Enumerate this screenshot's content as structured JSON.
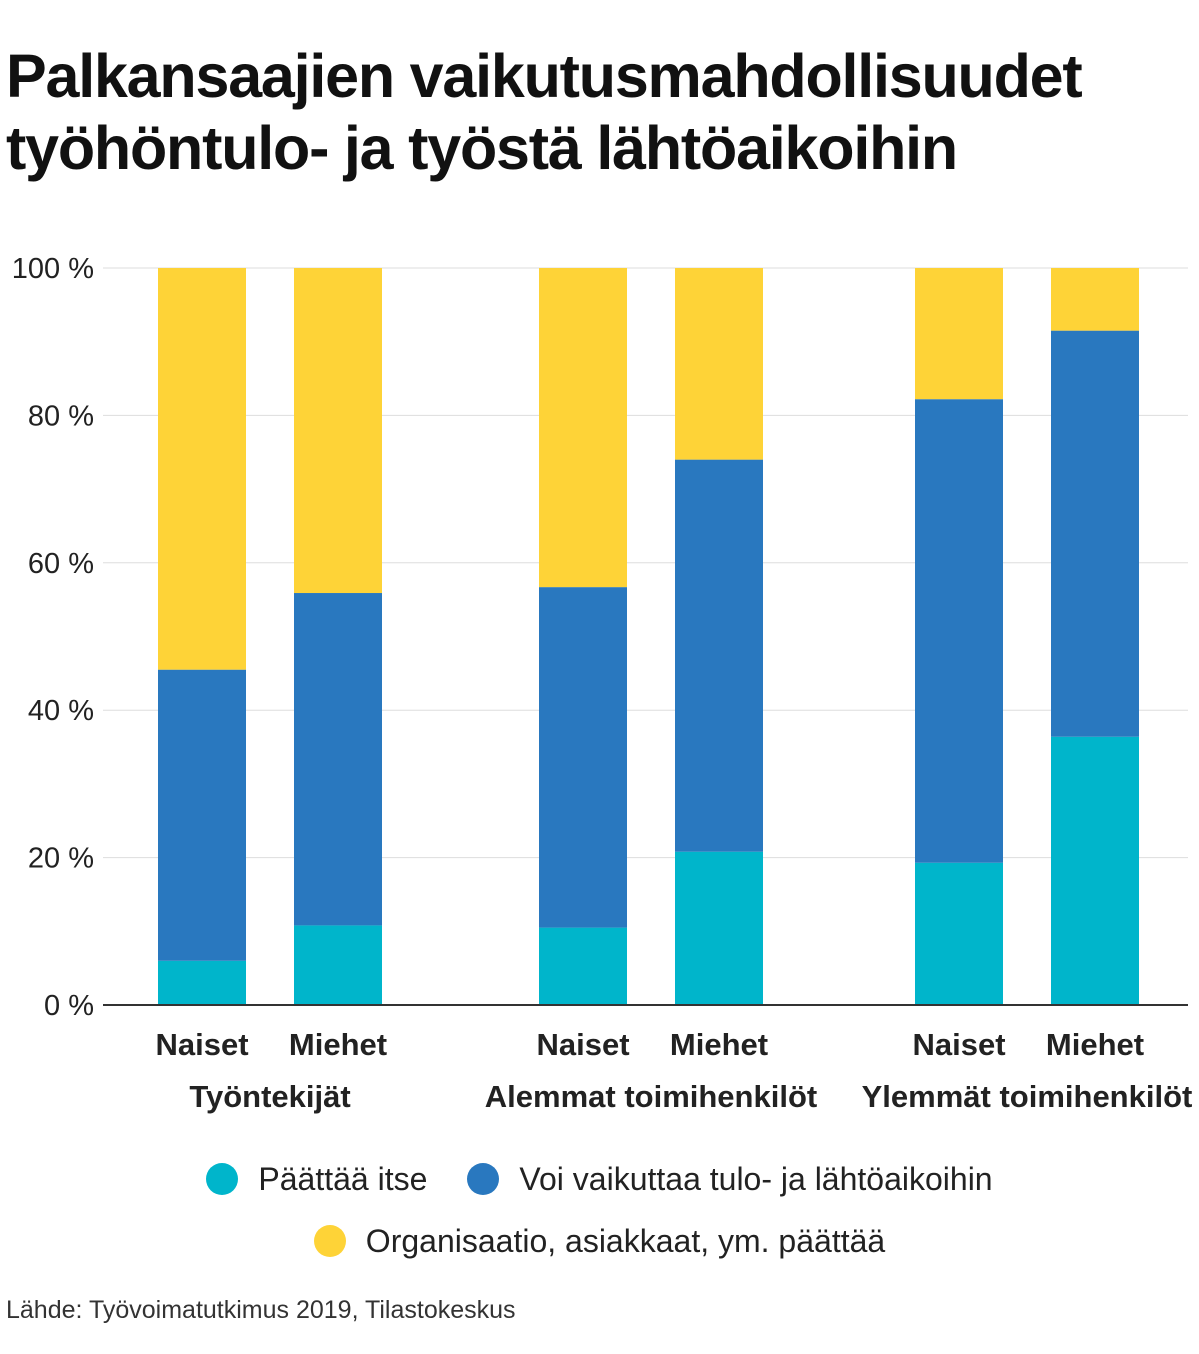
{
  "title_lines": [
    "Palkansaajien vaikutusmahdollisuudet",
    "työhöntulo- ja työstä lähtöaikoihin"
  ],
  "source": "Lähde: Työvoimatutkimus 2019, Tilastokeskus",
  "colors": {
    "paattaa_itse": "#00b5cb",
    "voi_vaikuttaa": "#2978bf",
    "organisaatio": "#fed337",
    "grid": "#dddddd",
    "axis": "#333333"
  },
  "chart_data": {
    "type": "bar",
    "stacked": true,
    "title": "Palkansaajien vaikutusmahdollisuudet työhöntulo- ja työstä lähtöaikoihin",
    "ylim": [
      0,
      100
    ],
    "yticks": [
      0,
      20,
      40,
      60,
      80,
      100
    ],
    "ytick_labels": [
      "0 %",
      "20 %",
      "40 %",
      "60 %",
      "80 %",
      "100 %"
    ],
    "grid": true,
    "legend_position": "bottom",
    "groups": [
      {
        "label": "Työntekijät",
        "bars": [
          {
            "label": "Naiset",
            "values": [
              6,
              39.5,
              54.5
            ]
          },
          {
            "label": "Miehet",
            "values": [
              10.8,
              45.1,
              44.1
            ]
          }
        ]
      },
      {
        "label": "Alemmat toimihenkilöt",
        "bars": [
          {
            "label": "Naiset",
            "values": [
              10.5,
              46.2,
              43.3
            ]
          },
          {
            "label": "Miehet",
            "values": [
              20.8,
              53.2,
              26
            ]
          }
        ]
      },
      {
        "label": "Ylemmät toimihenkilöt",
        "bars": [
          {
            "label": "Naiset",
            "values": [
              19.3,
              62.9,
              17.8
            ]
          },
          {
            "label": "Miehet",
            "values": [
              36.4,
              55.1,
              8.5
            ]
          }
        ]
      }
    ],
    "series": [
      {
        "name": "Päättää itse",
        "color": "#00b5cb"
      },
      {
        "name": "Voi vaikuttaa tulo- ja lähtöaikoihin",
        "color": "#2978bf"
      },
      {
        "name": "Organisaatio, asiakkaat, ym. päättää",
        "color": "#fed337"
      }
    ]
  }
}
